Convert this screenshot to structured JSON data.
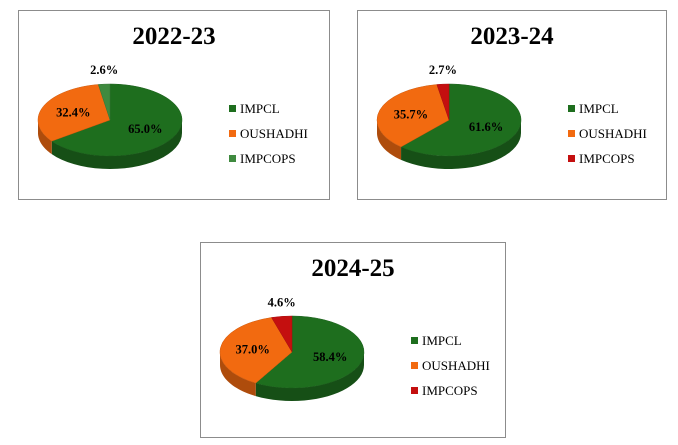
{
  "chart_data": [
    {
      "type": "pie",
      "title": "2022-23",
      "categories": [
        "IMPCL",
        "OUSHADHI",
        "IMPCOPS"
      ],
      "values": [
        65.0,
        32.4,
        2.6
      ],
      "data_labels": [
        "65.0%",
        "32.4%",
        "2.6%"
      ],
      "colors": [
        "#1e6e1e",
        "#f26a10",
        "#3f8a3f"
      ],
      "legend": "right"
    },
    {
      "type": "pie",
      "title": "2023-24",
      "categories": [
        "IMPCL",
        "OUSHADHI",
        "IMPCOPS"
      ],
      "values": [
        61.6,
        35.7,
        2.7
      ],
      "data_labels": [
        "61.6%",
        "35.7%",
        "2.7%"
      ],
      "colors": [
        "#1e6e1e",
        "#f26a10",
        "#c40f0f"
      ],
      "legend": "right"
    },
    {
      "type": "pie",
      "title": "2024-25",
      "categories": [
        "IMPCL",
        "OUSHADHI",
        "IMPCOPS"
      ],
      "values": [
        58.4,
        37.0,
        4.6
      ],
      "data_labels": [
        "58.4%",
        "37.0%",
        "4.6%"
      ],
      "colors": [
        "#1e6e1e",
        "#f26a10",
        "#c40f0f"
      ],
      "legend": "right"
    }
  ]
}
